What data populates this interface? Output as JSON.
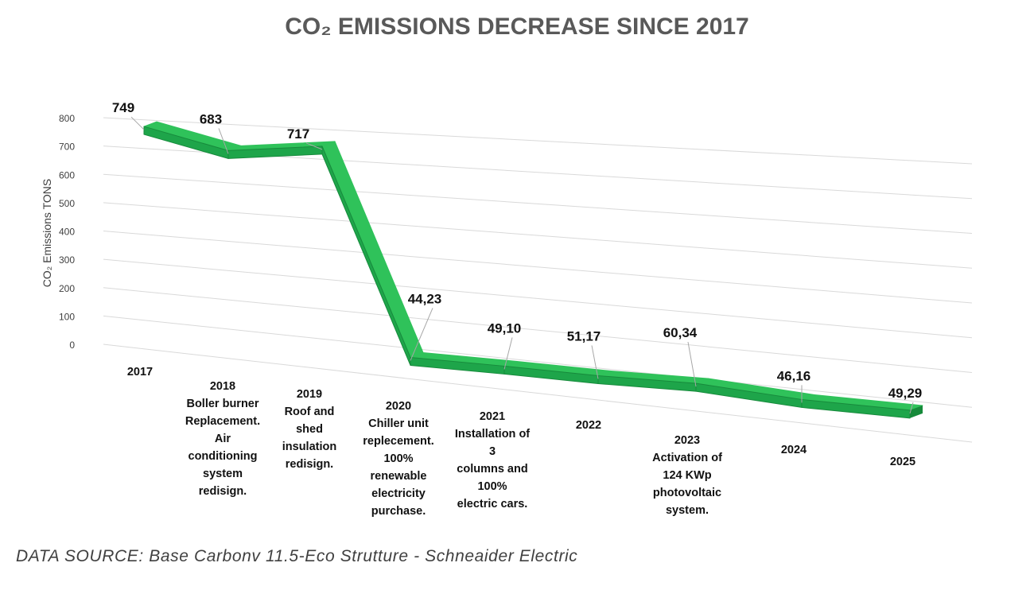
{
  "chart_data": {
    "type": "line",
    "title": "CO₂ EMISSIONS DECREASE SINCE 2017",
    "ylabel": "CO₂ Emissions TONS",
    "ylim": [
      0,
      800
    ],
    "yticks": [
      "0",
      "100",
      "200",
      "300",
      "400",
      "500",
      "600",
      "700",
      "800"
    ],
    "grid": true,
    "style": "3d-ribbon",
    "line_color": "#1faa4a",
    "categories": [
      "2017",
      "2018\nBoller burner\nReplacement.\nAir\nconditioning\nsystem\nredisign.",
      "2019\nRoof and\nshed\ninsulation\nredisign.",
      "2020\nChiller unit\nreplecement.\n100%\nrenewable\nelectricity\npurchase.",
      "2021\nInstallation of\n3\ncolumns and\n100%\nelectric cars.",
      "2022",
      "2023\nActivation of\n124 KWp\nphotovoltaic\nsystem.",
      "2024",
      "2025"
    ],
    "values": [
      749,
      683,
      717,
      44.23,
      49.1,
      51.17,
      60.34,
      46.16,
      49.29
    ],
    "data_labels": [
      "749",
      "683",
      "717",
      "44,23",
      "49,10",
      "51,17",
      "60,34",
      "46,16",
      "49,29"
    ]
  },
  "footer": {
    "source": "DATA SOURCE: Base Carbonv 11.5-Eco Strutture - Schneaider Electric"
  }
}
